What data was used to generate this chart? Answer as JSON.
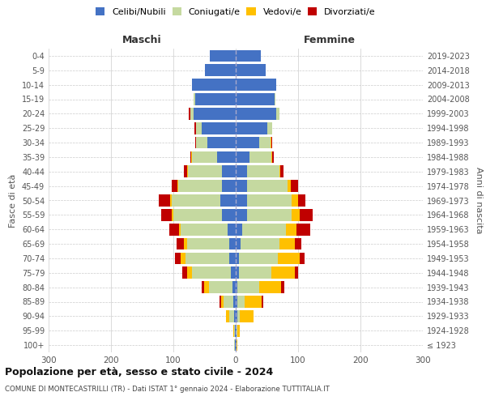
{
  "age_groups": [
    "100+",
    "95-99",
    "90-94",
    "85-89",
    "80-84",
    "75-79",
    "70-74",
    "65-69",
    "60-64",
    "55-59",
    "50-54",
    "45-49",
    "40-44",
    "35-39",
    "30-34",
    "25-29",
    "20-24",
    "15-19",
    "10-14",
    "5-9",
    "0-4"
  ],
  "birth_years": [
    "≤ 1923",
    "1924-1928",
    "1929-1933",
    "1934-1938",
    "1939-1943",
    "1944-1948",
    "1949-1953",
    "1954-1958",
    "1959-1963",
    "1964-1968",
    "1969-1973",
    "1974-1978",
    "1979-1983",
    "1984-1988",
    "1989-1993",
    "1994-1998",
    "1999-2003",
    "2004-2008",
    "2009-2013",
    "2014-2018",
    "2019-2023"
  ],
  "males": {
    "celibi": [
      1,
      1,
      2,
      4,
      5,
      8,
      10,
      10,
      13,
      22,
      25,
      22,
      22,
      30,
      45,
      55,
      68,
      65,
      70,
      50,
      42
    ],
    "coniugati": [
      1,
      2,
      8,
      15,
      38,
      62,
      70,
      68,
      75,
      78,
      78,
      70,
      55,
      40,
      18,
      8,
      5,
      2,
      0,
      0,
      0
    ],
    "vedovi": [
      0,
      1,
      5,
      5,
      8,
      8,
      8,
      5,
      3,
      2,
      2,
      1,
      1,
      1,
      0,
      1,
      0,
      0,
      0,
      0,
      0
    ],
    "divorziati": [
      0,
      0,
      0,
      2,
      3,
      8,
      10,
      12,
      15,
      18,
      18,
      10,
      5,
      2,
      2,
      2,
      2,
      0,
      0,
      0,
      0
    ]
  },
  "females": {
    "nubili": [
      1,
      1,
      2,
      2,
      3,
      5,
      5,
      8,
      10,
      18,
      18,
      18,
      18,
      22,
      38,
      50,
      65,
      62,
      65,
      48,
      40
    ],
    "coniugate": [
      0,
      1,
      5,
      12,
      35,
      52,
      62,
      62,
      70,
      72,
      72,
      65,
      52,
      35,
      18,
      8,
      5,
      2,
      0,
      0,
      0
    ],
    "vedove": [
      1,
      5,
      22,
      28,
      35,
      38,
      35,
      25,
      18,
      12,
      10,
      5,
      2,
      2,
      1,
      0,
      0,
      0,
      0,
      0,
      0
    ],
    "divorziate": [
      0,
      0,
      0,
      2,
      5,
      5,
      8,
      10,
      22,
      22,
      12,
      12,
      5,
      2,
      2,
      1,
      0,
      0,
      0,
      0,
      0
    ]
  },
  "color_celibi": "#4472c4",
  "color_coniugati": "#c5d9a0",
  "color_vedovi": "#ffc000",
  "color_divorziati": "#c00000",
  "xlim": 300,
  "title": "Popolazione per età, sesso e stato civile - 2024",
  "subtitle": "COMUNE DI MONTECASTRILLI (TR) - Dati ISTAT 1° gennaio 2024 - Elaborazione TUTTITALIA.IT",
  "ylabel_left": "Fasce di età",
  "ylabel_right": "Anni di nascita",
  "bg_color": "#ffffff",
  "grid_color": "#cccccc",
  "text_color": "#555555"
}
